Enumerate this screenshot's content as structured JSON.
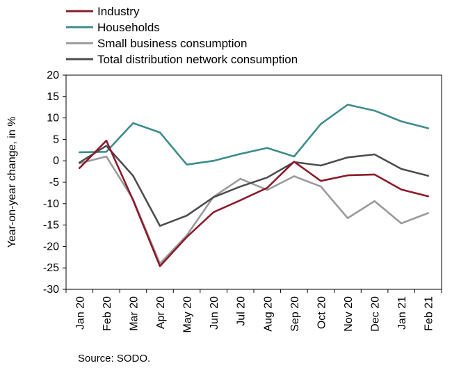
{
  "chart_data": {
    "type": "line",
    "title": "",
    "xlabel": "",
    "ylabel": "Year-on-year change, in %",
    "categories": [
      "Jan 20",
      "Feb 20",
      "Mar 20",
      "Apr 20",
      "May 20",
      "Jun 20",
      "Jul 20",
      "Aug 20",
      "Sep 20",
      "Oct 20",
      "Nov 20",
      "Dec 20",
      "Jan 21",
      "Feb 21"
    ],
    "ylim": [
      -30,
      20
    ],
    "yticks": [
      20,
      15,
      10,
      5,
      0,
      -5,
      -10,
      -15,
      -20,
      -25,
      -30
    ],
    "legend_position": "top-left",
    "grid": false,
    "series": [
      {
        "name": "Industry",
        "color": "#8b1a2b",
        "values": [
          -1.7,
          4.7,
          -9.2,
          -24.6,
          -17.8,
          -12.0,
          -9.2,
          -6.3,
          -0.2,
          -4.7,
          -3.4,
          -3.2,
          -6.7,
          -8.3
        ]
      },
      {
        "name": "Households",
        "color": "#3d8c8c",
        "values": [
          2.0,
          2.1,
          8.8,
          6.6,
          -0.9,
          0.0,
          1.6,
          3.0,
          1.0,
          8.6,
          13.1,
          11.7,
          9.2,
          7.6
        ]
      },
      {
        "name": "Small business consumption",
        "color": "#9a9a9a",
        "values": [
          -0.6,
          1.0,
          -9.0,
          -24.0,
          -17.4,
          -8.4,
          -4.2,
          -6.8,
          -3.6,
          -6.0,
          -13.4,
          -9.4,
          -14.6,
          -12.2
        ]
      },
      {
        "name": "Total distribution network consumption",
        "color": "#4d4d4d",
        "values": [
          -0.4,
          3.5,
          -3.5,
          -15.2,
          -12.8,
          -8.5,
          -6.0,
          -3.9,
          -0.3,
          -1.1,
          0.8,
          1.5,
          -1.9,
          -3.5
        ]
      }
    ],
    "source": "Source: SODO."
  }
}
